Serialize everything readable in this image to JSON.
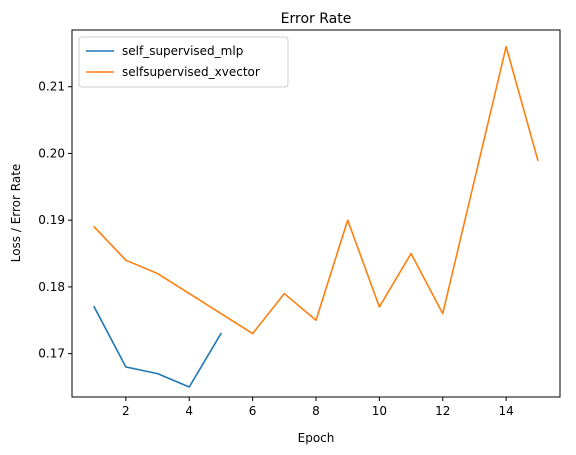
{
  "chart_data": {
    "type": "line",
    "title": "Error Rate",
    "xlabel": "Epoch",
    "ylabel": "Loss / Error Rate",
    "xlim": [
      0.3,
      15.7
    ],
    "ylim": [
      0.1635,
      0.2185
    ],
    "xticks": [
      2,
      4,
      6,
      8,
      10,
      12,
      14
    ],
    "yticks": [
      0.17,
      0.18,
      0.19,
      0.2,
      0.21
    ],
    "ytick_labels": [
      "0.17",
      "0.18",
      "0.19",
      "0.20",
      "0.21"
    ],
    "grid": false,
    "legend_position": "top-left",
    "series": [
      {
        "name": "self_supervised_mlp",
        "color": "#1f77b4",
        "x": [
          1,
          2,
          3,
          4,
          5
        ],
        "y": [
          0.177,
          0.168,
          0.167,
          0.165,
          0.173
        ]
      },
      {
        "name": "selfsupervised_xvector",
        "color": "#ff7f0e",
        "x": [
          1,
          2,
          3,
          4,
          5,
          6,
          7,
          8,
          9,
          10,
          11,
          12,
          13,
          14,
          15
        ],
        "y": [
          0.189,
          0.184,
          0.182,
          0.179,
          0.176,
          0.173,
          0.179,
          0.175,
          0.19,
          0.177,
          0.185,
          0.176,
          0.196,
          0.216,
          0.199
        ]
      }
    ]
  }
}
